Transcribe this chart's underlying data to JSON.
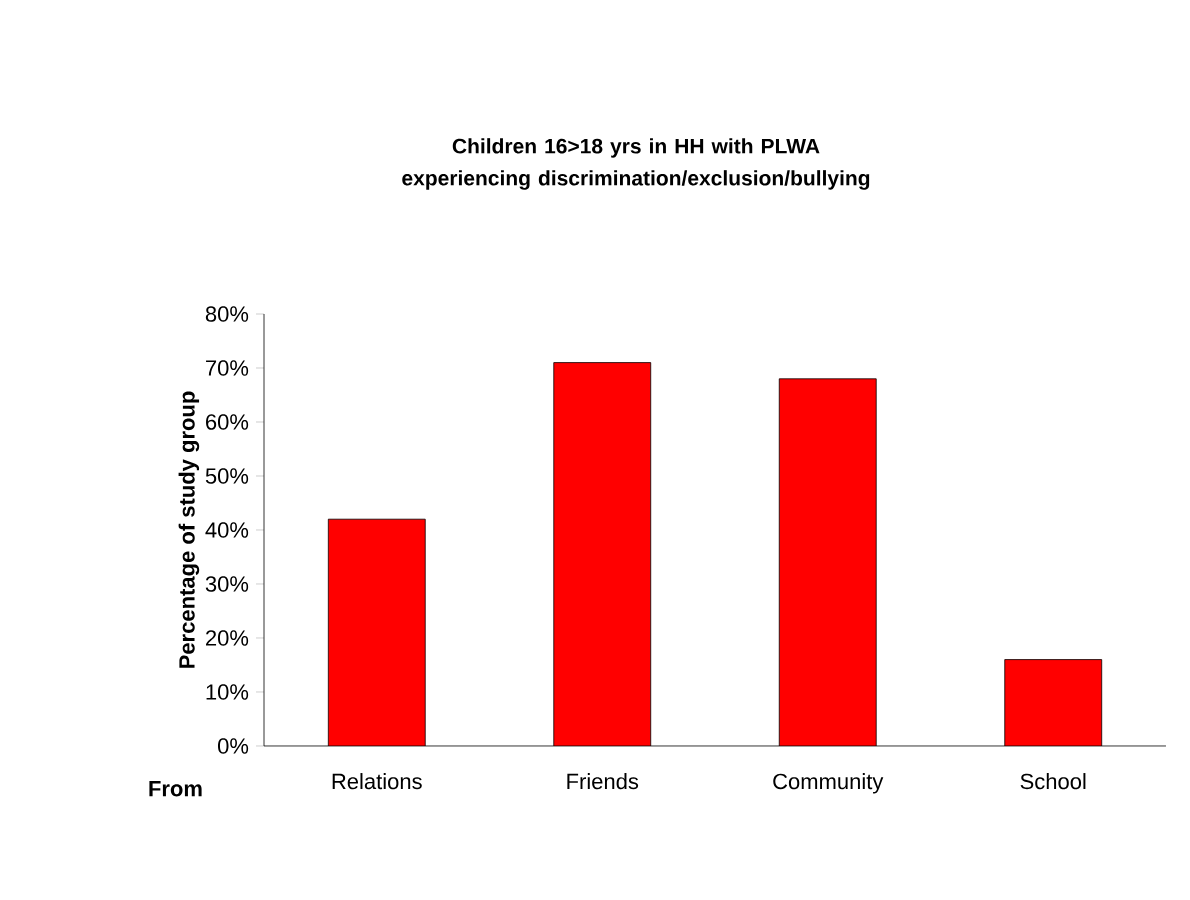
{
  "chart_data": {
    "type": "bar",
    "title": "Children 16>18 yrs in HH with PLWA experiencing discrimination/exclusion/bullying",
    "xlabel": "From",
    "ylabel": "Percentage of study group",
    "categories": [
      "Relations",
      "Friends",
      "Community",
      "School"
    ],
    "values": [
      42,
      71,
      68,
      16
    ],
    "color": "#ff0000",
    "ylim": [
      0,
      80
    ],
    "yticks": [
      {
        "value": 0,
        "label": "0%"
      },
      {
        "value": 10,
        "label": "10%"
      },
      {
        "value": 20,
        "label": "20%"
      },
      {
        "value": 30,
        "label": "30%"
      },
      {
        "value": 40,
        "label": "40%"
      },
      {
        "value": 50,
        "label": "50%"
      },
      {
        "value": 60,
        "label": "60%"
      },
      {
        "value": 70,
        "label": "70%"
      },
      {
        "value": 80,
        "label": "80%"
      }
    ],
    "grid": false
  }
}
